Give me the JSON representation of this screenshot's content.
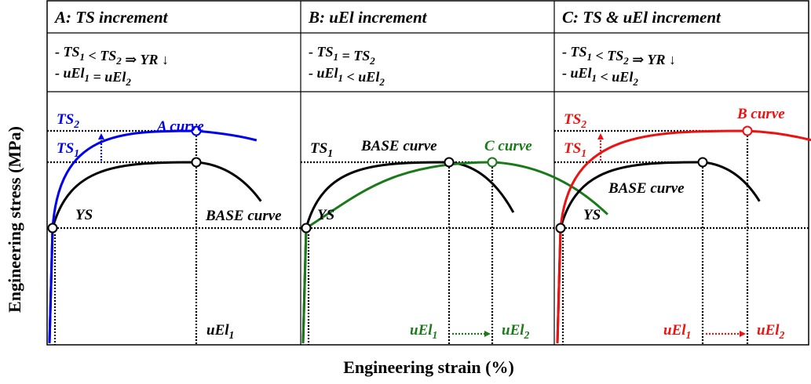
{
  "chart_data": {
    "type": "line",
    "title": "",
    "xlabel": "Engineering strain (%)",
    "ylabel": "Engineering stress (MPa)",
    "axis_ticks": "none (schematic)",
    "grid": false,
    "colors": {
      "base": "#000000",
      "A": "#0000ee",
      "C_green": "#1a7a1a",
      "B_red": "#ee1111"
    },
    "panels": [
      {
        "id": "A",
        "header": "A: TS increment",
        "notes": [
          {
            "prefix": "- ",
            "parts": [
              [
                "TS",
                "1"
              ],
              [
                " < ",
                ""
              ],
              [
                "TS",
                "2"
              ],
              [
                "  ⇒ YR ↓",
                ""
              ]
            ]
          },
          {
            "prefix": "- ",
            "parts": [
              [
                "uEl",
                "1"
              ],
              [
                " = ",
                ""
              ],
              [
                "uEl",
                "2"
              ]
            ]
          }
        ],
        "labels": {
          "ts2": {
            "main": "TS",
            "sub": "2",
            "color": "#0000ee"
          },
          "ts1": {
            "main": "TS",
            "sub": "1",
            "color": "#0000ee"
          },
          "ys": "YS",
          "curve_new": {
            "text": "A curve",
            "color": "#0000ee"
          },
          "curve_base": "BASE curve",
          "uel_labels": [
            {
              "main": "uEl",
              "sub": "1",
              "color": "#000000"
            }
          ]
        },
        "series": [
          {
            "name": "BASE curve",
            "color": "#000000",
            "ys": 0,
            "ts": 1.0,
            "uel": 1.0,
            "end_strain": 1.45,
            "end_stress": 0.55
          },
          {
            "name": "A curve",
            "color": "#0000ee",
            "ys": 0,
            "ts": 1.48,
            "uel": 1.0,
            "end_strain": 1.42,
            "end_stress": 1.0
          }
        ]
      },
      {
        "id": "B",
        "header": "B: uEl increment",
        "notes": [
          {
            "prefix": "- ",
            "parts": [
              [
                "TS",
                "1"
              ],
              [
                " = ",
                ""
              ],
              [
                "TS",
                "2"
              ]
            ]
          },
          {
            "prefix": "- ",
            "parts": [
              [
                "uEl",
                "1"
              ],
              [
                " < ",
                ""
              ],
              [
                "uEl",
                "2"
              ]
            ]
          }
        ],
        "labels": {
          "ts1": {
            "main": "TS",
            "sub": "1",
            "color": "#000000"
          },
          "ys": "YS",
          "curve_new": {
            "text": "C curve",
            "color": "#1a7a1a"
          },
          "curve_base": "BASE curve",
          "uel_labels": [
            {
              "main": "uEl",
              "sub": "1",
              "color": "#1a7a1a"
            },
            {
              "main": "uEl",
              "sub": "2",
              "color": "#1a7a1a"
            }
          ]
        },
        "series": [
          {
            "name": "BASE curve",
            "color": "#000000",
            "ys": 0,
            "ts": 1.0,
            "uel": 1.0,
            "end_strain": 1.45,
            "end_stress": 0.38
          },
          {
            "name": "C curve",
            "color": "#1a7a1a",
            "ys": 0,
            "ts": 1.0,
            "uel": 1.3,
            "end_strain": 1.62,
            "end_stress": 0.35
          }
        ]
      },
      {
        "id": "C",
        "header": "C: TS & uEl increment",
        "notes": [
          {
            "prefix": "- ",
            "parts": [
              [
                "TS",
                "1"
              ],
              [
                " < ",
                ""
              ],
              [
                "TS",
                "2"
              ],
              [
                "  ⇒ YR ↓",
                ""
              ]
            ]
          },
          {
            "prefix": "- ",
            "parts": [
              [
                "uEl",
                "1"
              ],
              [
                " < ",
                ""
              ],
              [
                "uEl",
                "2"
              ]
            ]
          }
        ],
        "labels": {
          "ts2": {
            "main": "TS",
            "sub": "2",
            "color": "#ee1111"
          },
          "ts1": {
            "main": "TS",
            "sub": "1",
            "color": "#ee1111"
          },
          "ys": "YS",
          "curve_new": {
            "text": "B curve",
            "color": "#ee1111"
          },
          "curve_base": "BASE curve",
          "uel_labels": [
            {
              "main": "uEl",
              "sub": "1",
              "color": "#ee1111"
            },
            {
              "main": "uEl",
              "sub": "2",
              "color": "#ee1111"
            }
          ]
        },
        "series": [
          {
            "name": "BASE curve",
            "color": "#000000",
            "ys": 0,
            "ts": 1.0,
            "uel": 1.0,
            "end_strain": 1.4,
            "end_stress": 0.55
          },
          {
            "name": "B curve",
            "color": "#ee1111",
            "ys": 0,
            "ts": 1.48,
            "uel": 1.3,
            "end_strain": 1.65,
            "end_stress": 0.78
          }
        ]
      }
    ]
  }
}
